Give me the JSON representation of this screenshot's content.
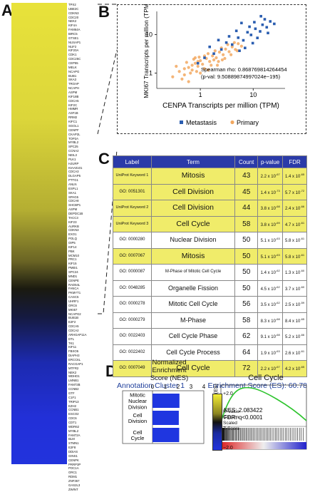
{
  "panels": {
    "a": "A",
    "b": "B",
    "c": "C",
    "d": "D"
  },
  "heatmap": {
    "genes": [
      "TPX2",
      "UBE2C",
      "CDKN3",
      "CDC20",
      "NEK2",
      "KIF4A",
      "FAM64A",
      "BIRC5",
      "GTSE1",
      "NUSAP1",
      "NUF2",
      "KIF20A",
      "CDK1",
      "CDC25C",
      "CEP55",
      "MELK",
      "NCAPG",
      "BUB1",
      "SKA3",
      "TROAP",
      "NCAPH",
      "ASPM",
      "KIF18B",
      "CDCA5",
      "KIF2C",
      "HMMR",
      "ASF1B",
      "RRM2",
      "KIFC1",
      "SGOL1",
      "CENPF",
      "CKAP2L",
      "TOP2A",
      "MYBL2",
      "SPC25",
      "CCNA2",
      "NEIL3",
      "PLK1",
      "HJURP",
      "KIAA0101",
      "CDCA3",
      "DLGAP5",
      "PTTG1",
      "ANLN",
      "ESPL1",
      "SKA1",
      "SPAG5",
      "CDCA8",
      "SHCBP1",
      "ASPM",
      "DEPDC1B",
      "TACC3",
      "KIF23",
      "AURKB",
      "CDKN3",
      "EXO1",
      "POLQ",
      "OIP5",
      "KIF14",
      "PBK",
      "MCM10",
      "PRC1",
      "KIF15",
      "PMEI1",
      "SPC24",
      "MND1",
      "CENPE",
      "RAD54L",
      "FANCA",
      "PKMYT1",
      "CASC5",
      "UHRF1",
      "ORC6",
      "MKI67",
      "NCAPG2",
      "BUB1B",
      "E2F2",
      "CDCA5",
      "CDCA2",
      "ARHGAP11A",
      "DTL",
      "TK1",
      "KIF11",
      "FBXO5",
      "DIAPH3",
      "ERCC6L",
      "RACGAP1",
      "MTFR2",
      "NEK2",
      "WDHD1",
      "LMNB1",
      "FAM72B",
      "CCNB2",
      "GTF",
      "C1F1",
      "TRIP13",
      "EZH2",
      "CCNB1",
      "ESCO2",
      "CDC6",
      "CDT1",
      "WDR62",
      "MYBL2",
      "FAM72A",
      "BLM",
      "STMN1",
      "E2F8",
      "DDIAS",
      "GINS1",
      "CENPK",
      "PRRP3P",
      "POC1A",
      "ORC1",
      "RDM1",
      "ZNF367",
      "GAS2L3",
      "ZWINT"
    ],
    "colorbar": {
      "max": "+2.0",
      "min": "−2.0",
      "label": [
        "R-Value",
        "Column",
        "Scaled",
        "Z-Score"
      ]
    }
  },
  "scatter": {
    "chart_data": {
      "type": "scatter",
      "xlabel": "CENPA Transcripts per million (TPM)",
      "ylabel": "MKI67 Transcripts per million (TPM)",
      "x_ticks": [
        "1",
        "10"
      ],
      "y_ticks": [
        "1",
        "10"
      ],
      "log_scale": true,
      "xlim": [
        0.15,
        40
      ],
      "ylim": [
        0.4,
        40
      ],
      "series": [
        {
          "name": "Metastasis",
          "color": "#2a5db0",
          "points": [
            [
              1.2,
              2.5
            ],
            [
              1.8,
              3.2
            ],
            [
              2.5,
              4.1
            ],
            [
              3.1,
              6.2
            ],
            [
              4.0,
              5.5
            ],
            [
              5.2,
              8.3
            ],
            [
              6.5,
              7.1
            ],
            [
              7.8,
              11.5
            ],
            [
              9.1,
              9.8
            ],
            [
              11.0,
              14.2
            ],
            [
              13.5,
              12.1
            ],
            [
              15.0,
              18.0
            ],
            [
              18.0,
              15.5
            ],
            [
              21.0,
              22.0
            ],
            [
              25.0,
              19.0
            ],
            [
              6.0,
              20.0
            ],
            [
              8.5,
              16.0
            ],
            [
              10.5,
              21.0
            ],
            [
              3.5,
              9.0
            ],
            [
              2.2,
              7.2
            ],
            [
              1.5,
              4.8
            ],
            [
              4.8,
              12.5
            ],
            [
              12.0,
              8.2
            ],
            [
              16.5,
              25.0
            ],
            [
              7.0,
              4.5
            ],
            [
              0.9,
              1.8
            ],
            [
              14.0,
              30.0
            ],
            [
              19.0,
              11.0
            ],
            [
              5.5,
              3.8
            ],
            [
              9.8,
              6.0
            ]
          ]
        },
        {
          "name": "Primary",
          "color": "#f2a860",
          "points": [
            [
              0.3,
              0.8
            ],
            [
              0.4,
              1.1
            ],
            [
              0.5,
              0.9
            ],
            [
              0.6,
              1.4
            ],
            [
              0.7,
              1.2
            ],
            [
              0.8,
              1.8
            ],
            [
              0.9,
              1.5
            ],
            [
              1.0,
              2.1
            ],
            [
              1.1,
              1.7
            ],
            [
              1.3,
              2.4
            ],
            [
              1.5,
              2.0
            ],
            [
              1.7,
              2.8
            ],
            [
              2.0,
              2.5
            ],
            [
              2.3,
              3.5
            ],
            [
              2.7,
              3.0
            ],
            [
              3.0,
              4.2
            ],
            [
              3.5,
              3.6
            ],
            [
              4.0,
              4.8
            ],
            [
              4.6,
              4.1
            ],
            [
              5.2,
              5.8
            ],
            [
              6.0,
              5.0
            ],
            [
              0.35,
              1.5
            ],
            [
              0.45,
              0.7
            ],
            [
              0.55,
              1.9
            ],
            [
              0.65,
              1.0
            ],
            [
              0.75,
              2.3
            ],
            [
              0.85,
              1.1
            ],
            [
              0.95,
              2.6
            ],
            [
              1.2,
              1.3
            ],
            [
              1.4,
              3.2
            ],
            [
              1.6,
              1.6
            ],
            [
              1.9,
              3.8
            ],
            [
              2.2,
              2.0
            ],
            [
              2.5,
              4.5
            ],
            [
              2.9,
              2.4
            ],
            [
              3.3,
              5.5
            ],
            [
              3.8,
              3.0
            ],
            [
              4.4,
              6.2
            ],
            [
              5.0,
              3.8
            ],
            [
              0.5,
              1.3
            ],
            [
              0.7,
              1.6
            ],
            [
              0.9,
              2.0
            ],
            [
              1.0,
              1.0
            ],
            [
              1.2,
              2.8
            ],
            [
              0.6,
              0.6
            ],
            [
              0.8,
              2.5
            ],
            [
              1.4,
              1.2
            ],
            [
              1.8,
              2.2
            ],
            [
              2.1,
              1.6
            ],
            [
              2.6,
              2.2
            ]
          ]
        }
      ]
    },
    "annotation": {
      "rho": "Spearman rho: 0.868769814264454",
      "pval": "(p-val: 9.50889874997024e−195)"
    },
    "legend": [
      {
        "label": "Metastasis",
        "color": "#2a5db0"
      },
      {
        "label": "Primary",
        "color": "#f2a860"
      }
    ]
  },
  "table": {
    "headers": [
      "Label",
      "Term",
      "Count",
      "p-value",
      "FDR"
    ],
    "rows": [
      {
        "label": "UniProt Keyword 1",
        "term": "Mitosis",
        "count": "43",
        "p": "2.2 x 10",
        "pexp": "-67",
        "fdr": "1.4 x 10",
        "fexp": "-65",
        "hl": true,
        "small": true,
        "big": true
      },
      {
        "label": "GO: 0051301",
        "term": "Cell Division",
        "count": "45",
        "p": "1.4 x 10",
        "pexp": "-73",
        "fdr": "5.7 x 10",
        "fexp": "-72",
        "hl": true,
        "small": false,
        "big": true
      },
      {
        "label": "UniProt Keyword 2",
        "term": "Cell Division",
        "count": "44",
        "p": "3.8 x 10",
        "pexp": "-68",
        "fdr": "2.4 x 10",
        "fexp": "-66",
        "hl": true,
        "small": true,
        "big": true
      },
      {
        "label": "UniProt Keyword 3",
        "term": "Cell Cycle",
        "count": "58",
        "p": "3.8 x 10",
        "pexp": "-69",
        "fdr": "4.7 x 10",
        "fexp": "-61",
        "hl": true,
        "small": true,
        "big": true
      },
      {
        "label": "GO: 0000280",
        "term": "Nuclear Division",
        "count": "50",
        "p": "5.1 x 10",
        "pexp": "-63",
        "fdr": "5.8 x 10",
        "fexp": "-61",
        "hl": false,
        "small": false,
        "big": false
      },
      {
        "label": "GO: 0007067",
        "term": "Mitosis",
        "count": "50",
        "p": "5.1 x 10",
        "pexp": "-63",
        "fdr": "5.8 x 10",
        "fexp": "-61",
        "hl": true,
        "small": false,
        "big": true
      },
      {
        "label": "GO: 0000087",
        "term": "M-Phase of Mitotic Cell Cycle",
        "count": "50",
        "p": "1.4 x 10",
        "pexp": "-62",
        "fdr": "1.3 x 10",
        "fexp": "-60",
        "hl": false,
        "small": false,
        "big": false,
        "tiny": true
      },
      {
        "label": "GO: 0048285",
        "term": "Organelle Fission",
        "count": "50",
        "p": "4.5 x 10",
        "pexp": "-62",
        "fdr": "3.7 x 10",
        "fexp": "-60",
        "hl": false,
        "small": false,
        "big": false
      },
      {
        "label": "GO: 0000278",
        "term": "Mitotic Cell Cycle",
        "count": "56",
        "p": "3.5 x 10",
        "pexp": "-62",
        "fdr": "2.5 x 10",
        "fexp": "-59",
        "hl": false,
        "small": false,
        "big": false
      },
      {
        "label": "GO: 0000279",
        "term": "M-Phase",
        "count": "58",
        "p": "8.3 x 10",
        "pexp": "-68",
        "fdr": "8.4 x 10",
        "fexp": "-65",
        "hl": false,
        "small": false,
        "big": false
      },
      {
        "label": "GO: 0022403",
        "term": "Cell Cycle Phase",
        "count": "62",
        "p": "9.1 x 10",
        "pexp": "-68",
        "fdr": "5.2 x 10",
        "fexp": "-66",
        "hl": false,
        "small": false,
        "big": false
      },
      {
        "label": "GO: 0022402",
        "term": "Cell Cycle Process",
        "count": "64",
        "p": "1.9 x 10",
        "pexp": "-63",
        "fdr": "2.6 x 10",
        "fexp": "-61",
        "hl": false,
        "small": false,
        "big": false
      },
      {
        "label": "GO: 0007049",
        "term": "Cell Cycle",
        "count": "72",
        "p": "2.2 x 10",
        "pexp": "-67",
        "fdr": "4.2 x 10",
        "fexp": "-65",
        "hl": true,
        "small": false,
        "big": true
      }
    ],
    "cluster": "Annotation Cluster 1",
    "es": "Enrichment Score (ES): 60.78"
  },
  "nes": {
    "title": [
      "Normalized",
      "Enrichment",
      "Score (NES)"
    ],
    "ticks": [
      "0",
      "1",
      "2",
      "3",
      "4"
    ],
    "chart_data": {
      "type": "bar",
      "categories": [
        "Mitotic Nuclear Division",
        "Cell Division",
        "Cell Cycle"
      ],
      "values": [
        2.1,
        2.05,
        2.08
      ],
      "xlim": [
        0,
        4
      ]
    },
    "labels": [
      [
        "Mitotic",
        "Nuclear",
        "Division"
      ],
      [
        "Cell",
        "Division"
      ],
      [
        "Cell",
        "Cycle"
      ]
    ]
  },
  "gsea": {
    "title": "Cell Cycle",
    "ylabel": "Enrichment Score (ES)",
    "nes": "NES: 2.083422",
    "fdr": "FDR: q<0.0001"
  }
}
